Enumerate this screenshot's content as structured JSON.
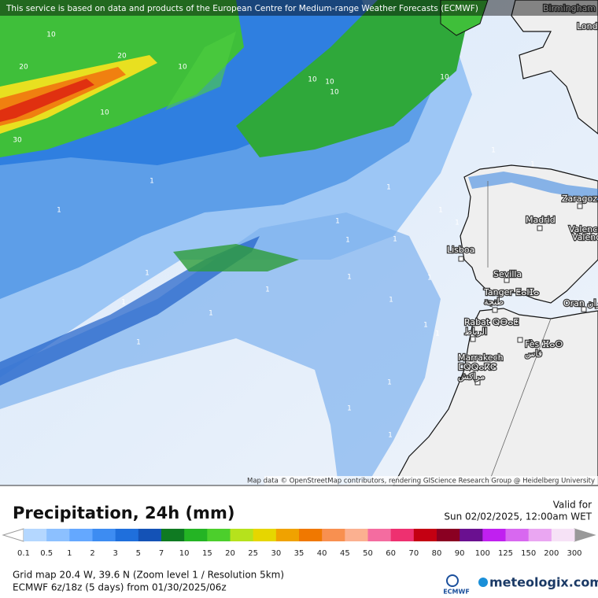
{
  "banner": "This service is based on data and products of the European Centre for Medium-range Weather Forecasts (ECMWF)",
  "map": {
    "cities": [
      {
        "lines": [
          "Birmingham"
        ]
      },
      {
        "lines": [
          "Lond"
        ]
      },
      {
        "lines": [
          "Zaragoz"
        ]
      },
      {
        "lines": [
          "Madrid"
        ]
      },
      {
        "lines": [
          "Valenc"
        ]
      },
      {
        "lines": [
          "Valenc"
        ]
      },
      {
        "lines": [
          "Lisboa"
        ]
      },
      {
        "lines": [
          "Sevilla"
        ]
      },
      {
        "lines": [
          "Tanger ⵟⴰⵏⵊⴰ",
          "طنجة"
        ]
      },
      {
        "lines": [
          "Oran وهران"
        ]
      },
      {
        "lines": [
          "Rabat ⵕⴱⴰⵟ",
          "الرباط"
        ]
      },
      {
        "lines": [
          "Fès ⴼⴰⵙ",
          "فاس"
        ]
      },
      {
        "lines": [
          "Marrakech",
          "ⵎⵕⵕⴰⴽⵛ",
          "مراكش"
        ]
      }
    ],
    "contour_labels": [
      10,
      20,
      20,
      10,
      10,
      30,
      10,
      10,
      10,
      10,
      1,
      1,
      1,
      1,
      1,
      1,
      1,
      1,
      1,
      1,
      1,
      1,
      1,
      1,
      1,
      1,
      1,
      1,
      1,
      1,
      1,
      1,
      1
    ],
    "attribution": "Map data © OpenStreetMap contributors, rendering GIScience Research Group @ Heidelberg University"
  },
  "footer": {
    "title": "Precipitation, 24h (mm)",
    "valid_label": "Valid for",
    "valid_time": "Sun 02/02/2025, 12:00am WET",
    "legend": {
      "labels": [
        0.1,
        0.5,
        1,
        2,
        3,
        5,
        7,
        10,
        15,
        20,
        25,
        30,
        35,
        40,
        45,
        50,
        60,
        70,
        80,
        90,
        100,
        125,
        150,
        200,
        300
      ],
      "colors": [
        "#b4d7ff",
        "#8cc0ff",
        "#64a8ff",
        "#3d8cf2",
        "#1f6fdc",
        "#1452b6",
        "#0f7a22",
        "#24b424",
        "#4ccf2c",
        "#b6e21c",
        "#e6d600",
        "#f0a200",
        "#f07800",
        "#f89050",
        "#fbb090",
        "#f46ca0",
        "#ee3070",
        "#c40012",
        "#8a0022",
        "#6a1090",
        "#c020f0",
        "#d868f0",
        "#eaa6f2",
        "#f6e2f6"
      ]
    },
    "grid_info": "Grid map 20.4 W, 39.6 N (Zoom level 1 / Resolution 5km)",
    "model_info": "ECMWF 6z/18z (5 days) from 01/30/2025/06z",
    "ecmwf_logo": "ECMWF",
    "brand": "meteologix.com"
  }
}
